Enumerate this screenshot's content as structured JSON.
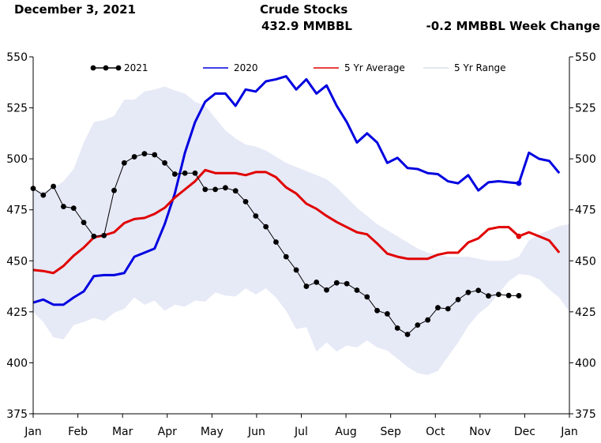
{
  "header": {
    "date": "December 3, 2021",
    "title": "Crude Stocks",
    "level": "432.9 MMBBL",
    "week_change": "-0.2 MMBBL Week Change"
  },
  "chart_data": {
    "type": "line",
    "ylim": [
      375,
      550
    ],
    "yticks": [
      375,
      400,
      425,
      450,
      475,
      500,
      525,
      550
    ],
    "xlim": [
      0,
      53
    ],
    "x_unit": "week of year",
    "month_ticks": [
      "Jan",
      "Feb",
      "Mar",
      "Apr",
      "May",
      "Jun",
      "Jul",
      "Aug",
      "Sep",
      "Oct",
      "Nov",
      "Dec",
      "Jan"
    ],
    "grid": false,
    "legend": "top",
    "legend_labels": [
      "2021",
      "2020",
      "5 Yr Average",
      "5 Yr Range"
    ],
    "colors": {
      "y2021": "#000000",
      "y2020": "#0000e0",
      "avg": "#e00000",
      "range": "#e6e9f6"
    },
    "series": [
      {
        "name": "2021",
        "x": [
          0,
          1,
          2,
          3,
          4,
          5,
          6,
          7,
          8,
          9,
          10,
          11,
          12,
          13,
          14,
          15,
          16,
          17,
          18,
          19,
          20,
          21,
          22,
          23,
          24,
          25,
          26,
          27,
          28,
          29,
          30,
          31,
          32,
          33,
          34,
          35,
          36,
          37,
          38,
          39,
          40,
          41,
          42,
          43,
          44,
          45,
          46,
          47,
          48,
          49
        ],
        "values": [
          485.5,
          482.2,
          486.5,
          476.6,
          475.8,
          468.8,
          462.0,
          462.4,
          484.5,
          498.0,
          501.0,
          502.5,
          502.0,
          498.0,
          492.5,
          493.0,
          493.0,
          485.0,
          485.0,
          485.8,
          484.3,
          479.0,
          472.0,
          466.7,
          459.2,
          452.0,
          445.5,
          437.5,
          439.5,
          435.7,
          439.2,
          438.8,
          435.6,
          432.3,
          425.6,
          424.0,
          417.0,
          413.9,
          418.5,
          421.0,
          427.0,
          426.5,
          431.0,
          434.5,
          435.5,
          432.8,
          433.5,
          433.0,
          432.9,
          null
        ]
      },
      {
        "name": "2020",
        "x": [
          0,
          1,
          2,
          3,
          4,
          5,
          6,
          7,
          8,
          9,
          10,
          11,
          12,
          13,
          14,
          15,
          16,
          17,
          18,
          19,
          20,
          21,
          22,
          23,
          24,
          25,
          26,
          27,
          28,
          29,
          30,
          31,
          32,
          33,
          34,
          35,
          36,
          37,
          38,
          39,
          40,
          41,
          42,
          43,
          44,
          45,
          46,
          47,
          48,
          49,
          50,
          51,
          52,
          53
        ],
        "values": [
          429.5,
          431.0,
          428.5,
          428.5,
          432.0,
          435.0,
          442.5,
          443.0,
          443.0,
          444.0,
          452.0,
          454.0,
          456.0,
          468.0,
          483.0,
          503.0,
          518.0,
          528.0,
          532.0,
          532.0,
          526.0,
          534.0,
          533.0,
          538.0,
          539.0,
          540.5,
          534.0,
          539.0,
          532.0,
          536.0,
          526.0,
          518.0,
          508.0,
          512.5,
          508.0,
          498.0,
          500.5,
          495.5,
          495.0,
          493.0,
          492.5,
          489.0,
          488.0,
          492.0,
          484.5,
          488.5,
          489.0,
          488.5,
          488.0,
          503.0,
          500.0,
          499.0,
          493.0,
          null
        ]
      },
      {
        "name": "5 Yr Average",
        "x": [
          0,
          1,
          2,
          3,
          4,
          5,
          6,
          7,
          8,
          9,
          10,
          11,
          12,
          13,
          14,
          15,
          16,
          17,
          18,
          19,
          20,
          21,
          22,
          23,
          24,
          25,
          26,
          27,
          28,
          29,
          30,
          31,
          32,
          33,
          34,
          35,
          36,
          37,
          38,
          39,
          40,
          41,
          42,
          43,
          44,
          45,
          46,
          47,
          48,
          49,
          50,
          51,
          52,
          53
        ],
        "values": [
          445.5,
          445.0,
          444.0,
          447.5,
          452.5,
          456.5,
          461.5,
          462.5,
          464.0,
          468.5,
          470.5,
          471.0,
          473.0,
          476.0,
          481.0,
          485.0,
          489.0,
          494.5,
          493.0,
          493.0,
          493.0,
          492.0,
          493.5,
          493.5,
          491.0,
          486.0,
          483.0,
          478.0,
          475.5,
          472.0,
          469.0,
          466.5,
          464.0,
          463.0,
          458.5,
          453.5,
          452.0,
          451.0,
          451.0,
          451.0,
          453.0,
          454.0,
          454.0,
          459.0,
          461.0,
          465.5,
          466.5,
          466.5,
          462.0,
          464.0,
          462.0,
          460.0,
          454.0,
          null
        ]
      },
      {
        "name": "5 Yr Range",
        "x": [
          0,
          1,
          2,
          3,
          4,
          5,
          6,
          7,
          8,
          9,
          10,
          11,
          12,
          13,
          14,
          15,
          16,
          17,
          18,
          19,
          20,
          21,
          22,
          23,
          24,
          25,
          26,
          27,
          28,
          29,
          30,
          31,
          32,
          33,
          34,
          35,
          36,
          37,
          38,
          39,
          40,
          41,
          42,
          43,
          44,
          45,
          46,
          47,
          48,
          49,
          50,
          51,
          52,
          53
        ],
        "high": [
          485.0,
          484.0,
          485.5,
          489.0,
          495.0,
          508.0,
          518.0,
          519.0,
          521.0,
          529.0,
          529.0,
          533.0,
          534.0,
          535.5,
          533.5,
          532.0,
          528.0,
          526.0,
          520.0,
          514.0,
          510.0,
          507.0,
          506.0,
          504.0,
          501.0,
          498.0,
          496.0,
          494.0,
          492.0,
          490.0,
          486.0,
          481.0,
          476.0,
          472.0,
          468.0,
          465.0,
          462.0,
          459.0,
          456.0,
          454.0,
          453.0,
          452.0,
          452.0,
          452.0,
          451.0,
          450.0,
          450.0,
          450.0,
          452.0,
          460.0,
          463.0,
          465.0,
          467.0,
          468.0
        ],
        "low": [
          425.0,
          420.0,
          412.5,
          411.5,
          418.5,
          420.0,
          422.0,
          420.5,
          424.5,
          426.5,
          432.0,
          428.5,
          430.5,
          425.5,
          428.5,
          427.5,
          430.5,
          430.0,
          434.5,
          433.0,
          432.5,
          436.5,
          433.5,
          436.5,
          432.0,
          425.5,
          416.5,
          417.5,
          405.5,
          410.0,
          405.5,
          408.5,
          407.5,
          411.0,
          407.5,
          406.0,
          402.0,
          398.0,
          395.0,
          394.0,
          396.0,
          403.0,
          410.0,
          418.0,
          424.0,
          428.0,
          434.0,
          440.0,
          443.5,
          443.0,
          441.0,
          436.0,
          432.0,
          425.0
        ]
      }
    ]
  }
}
